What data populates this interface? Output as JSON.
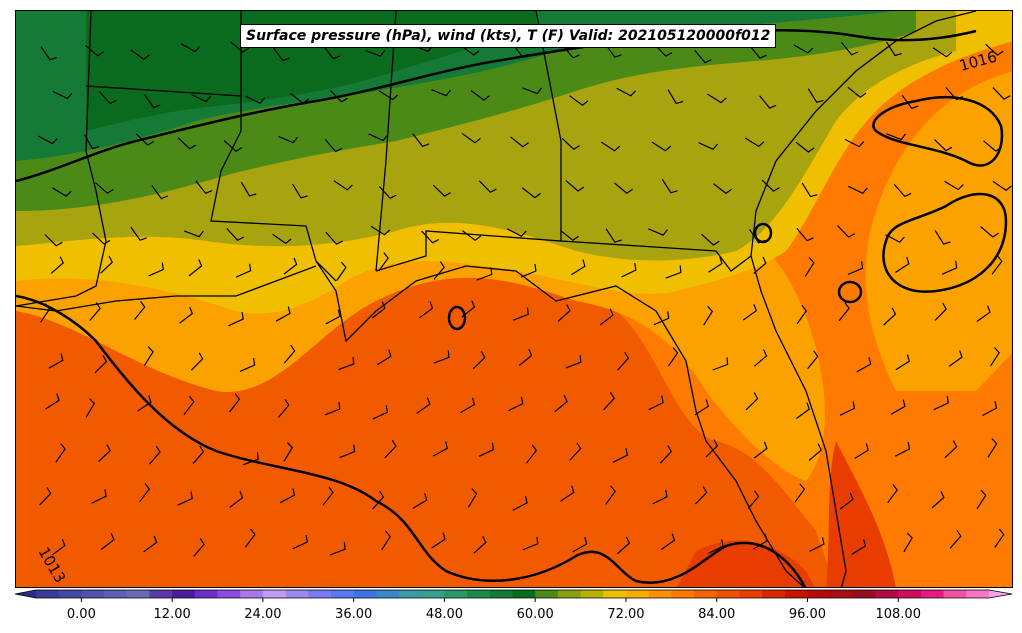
{
  "title": "Surface pressure (hPa), wind (kts), T (F) Valid: 202105120000f012",
  "isobar_labels": [
    "1016",
    "1013"
  ],
  "colorbar": {
    "ticks": [
      "0.00",
      "12.00",
      "24.00",
      "36.00",
      "48.00",
      "60.00",
      "72.00",
      "84.00",
      "96.00",
      "108.00"
    ],
    "tick_values": [
      0,
      12,
      24,
      36,
      48,
      60,
      72,
      84,
      96,
      108
    ],
    "range": [
      -6,
      120
    ],
    "step": 3,
    "extend": "both",
    "colors": [
      "#3b3b9b",
      "#4646a6",
      "#5252ae",
      "#5e5eb2",
      "#6a6ab6",
      "#5a3aa6",
      "#4a1aa0",
      "#6c2cc8",
      "#8a4ae0",
      "#a878ec",
      "#c09cf4",
      "#9c8af4",
      "#7a7af4",
      "#5a78f0",
      "#3c74e4",
      "#3a88c8",
      "#3c9aa8",
      "#36a08a",
      "#2a9866",
      "#1e8a4a",
      "#157a36",
      "#0a6a1e",
      "#4c8a18",
      "#86a010",
      "#b8b000",
      "#ecc000",
      "#f8ac00",
      "#fc9000",
      "#ff7800",
      "#f86400",
      "#f05000",
      "#e83c00",
      "#d82800",
      "#c81400",
      "#b80a08",
      "#a80c14",
      "#9a0c20",
      "#b40c40",
      "#d00c60",
      "#e81a80",
      "#f050a0",
      "#f878c0"
    ],
    "under_color": "#2a2a8a",
    "over_color": "#fca0dc"
  }
}
